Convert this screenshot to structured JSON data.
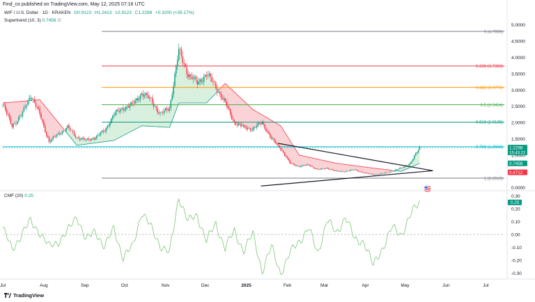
{
  "header": {
    "published": "Find_co published on TradingView.com, May 12, 2025 07:16 UTC",
    "symbol": "WIF / U.S. Dollar · 1D · KRAKEN",
    "open": "O0.9123",
    "high": "H1.2413",
    "low": "L0.9123",
    "close": "C1.2298",
    "change": "+0.3200 (+35.17%)",
    "supertrend_label": "Supertrend (10, 3)",
    "supertrend_value": "0.7458",
    "supertrend_mark": "∅",
    "cmf_label": "CMF (20)",
    "cmf_value": "0.25"
  },
  "footer": {
    "brand": "TradingView"
  },
  "colors": {
    "up": "#089981",
    "down": "#f23645",
    "bull_fill": "#d9f0de",
    "bear_fill": "#fbd3d6",
    "fib0": "#787b86",
    "fib236": "#f23645",
    "fib382": "#ff9800",
    "fib5": "#4caf50",
    "fib618": "#089981",
    "fib786": "#00bcd4",
    "fib1": "#787b86",
    "cmf_line": "#7cc576"
  },
  "chart_data": [
    {
      "type": "candlestick",
      "title": "WIF / U.S. Dollar · 1D · KRAKEN",
      "y_ticks": [
        "5.0000",
        "4.5000",
        "4.0000",
        "3.5000",
        "3.0000",
        "2.5000",
        "2.0000",
        "1.5000",
        "1.0000",
        "0.5000",
        "0.0000"
      ],
      "x_ticks": [
        "Jul",
        "Aug",
        "Sep",
        "Oct",
        "Nov",
        "Dec",
        "2025",
        "Feb",
        "Mar",
        "Apr",
        "May",
        "Jun",
        "Jul"
      ],
      "ylim": [
        -0.05,
        5.25
      ],
      "price_path": [
        [
          "2024-07-01",
          2.55
        ],
        [
          "2024-07-08",
          1.9
        ],
        [
          "2024-07-15",
          2.2
        ],
        [
          "2024-07-22",
          2.85
        ],
        [
          "2024-07-29",
          2.25
        ],
        [
          "2024-08-05",
          1.4
        ],
        [
          "2024-08-12",
          1.65
        ],
        [
          "2024-08-19",
          1.85
        ],
        [
          "2024-08-26",
          1.55
        ],
        [
          "2024-09-02",
          1.45
        ],
        [
          "2024-09-09",
          1.55
        ],
        [
          "2024-09-16",
          1.75
        ],
        [
          "2024-09-23",
          2.25
        ],
        [
          "2024-09-30",
          2.45
        ],
        [
          "2024-10-07",
          2.55
        ],
        [
          "2024-10-14",
          2.9
        ],
        [
          "2024-10-21",
          2.7
        ],
        [
          "2024-10-28",
          2.25
        ],
        [
          "2024-11-04",
          2.45
        ],
        [
          "2024-11-11",
          4.2
        ],
        [
          "2024-11-18",
          3.5
        ],
        [
          "2024-11-25",
          3.2
        ],
        [
          "2024-12-02",
          3.5
        ],
        [
          "2024-12-09",
          3.1
        ],
        [
          "2024-12-16",
          2.6
        ],
        [
          "2024-12-23",
          2.0
        ],
        [
          "2024-12-30",
          1.85
        ],
        [
          "2025-01-06",
          1.8
        ],
        [
          "2025-01-13",
          2.0
        ],
        [
          "2025-01-20",
          1.5
        ],
        [
          "2025-01-27",
          1.2
        ],
        [
          "2025-02-03",
          0.75
        ],
        [
          "2025-02-10",
          0.65
        ],
        [
          "2025-02-17",
          0.7
        ],
        [
          "2025-02-24",
          0.55
        ],
        [
          "2025-03-03",
          0.6
        ],
        [
          "2025-03-10",
          0.5
        ],
        [
          "2025-03-17",
          0.5
        ],
        [
          "2025-03-24",
          0.55
        ],
        [
          "2025-03-31",
          0.45
        ],
        [
          "2025-04-07",
          0.4
        ],
        [
          "2025-04-14",
          0.43
        ],
        [
          "2025-04-21",
          0.5
        ],
        [
          "2025-04-28",
          0.6
        ],
        [
          "2025-05-05",
          0.75
        ],
        [
          "2025-05-12",
          1.2298
        ]
      ],
      "supertrend_path": [
        [
          "2024-07-01",
          2.6
        ],
        [
          "2024-07-29",
          2.7
        ],
        [
          "2024-08-12",
          2.0
        ],
        [
          "2024-08-26",
          1.3
        ],
        [
          "2024-09-23",
          1.45
        ],
        [
          "2024-10-14",
          1.9
        ],
        [
          "2024-11-04",
          1.85
        ],
        [
          "2024-11-11",
          2.6
        ],
        [
          "2024-12-02",
          2.6
        ],
        [
          "2024-12-16",
          3.2
        ],
        [
          "2025-01-06",
          2.4
        ],
        [
          "2025-01-27",
          1.9
        ],
        [
          "2025-02-10",
          1.0
        ],
        [
          "2025-03-10",
          0.75
        ],
        [
          "2025-04-07",
          0.6
        ],
        [
          "2025-04-28",
          0.5
        ],
        [
          "2025-05-12",
          0.7458
        ]
      ],
      "fib_levels": [
        {
          "label": "0 (4.7989)",
          "value": 4.7989
        },
        {
          "label": "0.236 (3.7353)",
          "value": 3.7353
        },
        {
          "label": "0.382 (3.0772)",
          "value": 3.0772
        },
        {
          "label": "0.5 (2.5454)",
          "value": 2.5454
        },
        {
          "label": "0.618 (2.0136)",
          "value": 2.0136
        },
        {
          "label": "0.786 (1.2564)",
          "value": 1.2564
        },
        {
          "label": "1 (0.2919)",
          "value": 0.2919
        }
      ],
      "trendlines": [
        {
          "from": [
            "2025-01-25",
            1.36
          ],
          "to": [
            "2025-05-22",
            0.52
          ]
        },
        {
          "from": [
            "2025-01-12",
            0.05
          ],
          "to": [
            "2025-05-22",
            0.52
          ]
        }
      ],
      "price_labels": [
        {
          "text": "1.2298",
          "sub": "15:43:22",
          "value": 1.2298,
          "color": "#089981"
        },
        {
          "text": "0.7458",
          "value": 0.7458,
          "color": "#089981"
        },
        {
          "text": "0.4712",
          "value": 0.4712,
          "color": "#f23645"
        }
      ],
      "events_flag": "US flag"
    },
    {
      "type": "line",
      "title": "CMF (20)",
      "y_ticks": [
        "0.30",
        "0.20",
        "0.10",
        "0.00",
        "-0.10",
        "-0.20",
        "-0.30"
      ],
      "ylim": [
        -0.32,
        0.32
      ],
      "last_value_label": "0.25",
      "series": [
        {
          "name": "CMF (20)",
          "points": [
            [
              "2024-07-01",
              0.05
            ],
            [
              "2024-07-08",
              -0.12
            ],
            [
              "2024-07-15",
              0.0
            ],
            [
              "2024-07-22",
              0.1
            ],
            [
              "2024-07-29",
              0.02
            ],
            [
              "2024-08-05",
              -0.1
            ],
            [
              "2024-08-12",
              -0.05
            ],
            [
              "2024-08-19",
              0.02
            ],
            [
              "2024-08-26",
              0.15
            ],
            [
              "2024-09-02",
              -0.05
            ],
            [
              "2024-09-09",
              0.03
            ],
            [
              "2024-09-16",
              -0.1
            ],
            [
              "2024-09-23",
              0.05
            ],
            [
              "2024-09-30",
              -0.18
            ],
            [
              "2024-10-07",
              -0.1
            ],
            [
              "2024-10-14",
              0.18
            ],
            [
              "2024-10-21",
              0.05
            ],
            [
              "2024-10-28",
              -0.08
            ],
            [
              "2024-11-04",
              -0.15
            ],
            [
              "2024-11-11",
              0.3
            ],
            [
              "2024-11-18",
              0.1
            ],
            [
              "2024-11-25",
              0.15
            ],
            [
              "2024-12-02",
              -0.05
            ],
            [
              "2024-12-09",
              0.08
            ],
            [
              "2024-12-16",
              -0.1
            ],
            [
              "2024-12-23",
              0.02
            ],
            [
              "2024-12-30",
              -0.12
            ],
            [
              "2025-01-06",
              0.0
            ],
            [
              "2025-01-13",
              -0.28
            ],
            [
              "2025-01-20",
              -0.1
            ],
            [
              "2025-01-27",
              -0.3
            ],
            [
              "2025-02-03",
              -0.15
            ],
            [
              "2025-02-10",
              -0.05
            ],
            [
              "2025-02-17",
              0.05
            ],
            [
              "2025-02-24",
              -0.15
            ],
            [
              "2025-03-03",
              0.12
            ],
            [
              "2025-03-10",
              0.0
            ],
            [
              "2025-03-17",
              0.15
            ],
            [
              "2025-03-24",
              -0.05
            ],
            [
              "2025-03-31",
              -0.05
            ],
            [
              "2025-04-07",
              -0.25
            ],
            [
              "2025-04-14",
              -0.1
            ],
            [
              "2025-04-21",
              0.05
            ],
            [
              "2025-04-28",
              0.0
            ],
            [
              "2025-05-05",
              0.15
            ],
            [
              "2025-05-12",
              0.25
            ]
          ]
        }
      ]
    }
  ]
}
